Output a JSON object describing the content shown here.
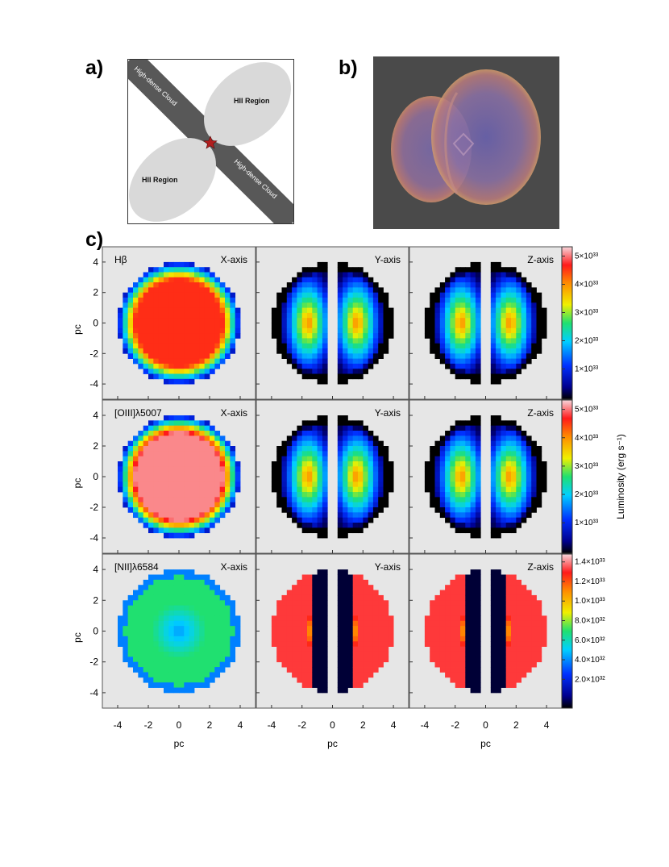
{
  "panel_labels": {
    "a": "a)",
    "b": "b)",
    "c": "c)"
  },
  "schematic": {
    "cloud_label_upper": "High-dense Cloud",
    "cloud_label_lower": "High-dense Cloud",
    "hii_upper": "HII Region",
    "hii_lower": "HII Region",
    "colors": {
      "frame_bg": "#ffffff",
      "cloud": "#585858",
      "hii": "#d9d9d9",
      "star": "#b01e1e"
    }
  },
  "render": {
    "colors": {
      "bg": "#4a4a4a",
      "shell": "#b07878",
      "inner": "#7c6aa6"
    }
  },
  "maps": {
    "axis_label": "pc",
    "ticks": [
      "-4",
      "-2",
      "0",
      "2",
      "4"
    ],
    "ylim": [
      -5,
      5
    ],
    "xlim": [
      -5,
      5
    ],
    "rows": [
      {
        "line": "Hβ",
        "cbar_ticks": [
          "5×10³³",
          "4×10³³",
          "3×10³³",
          "2×10³³",
          "1×10³³"
        ]
      },
      {
        "line": "[OIII]λ5007",
        "cbar_ticks": [
          "5×10³³",
          "4×10³³",
          "3×10³³",
          "2×10³³",
          "1×10³³"
        ]
      },
      {
        "line": "[NII]λ6584",
        "cbar_ticks": [
          "1.4×10³³",
          "1.2×10³³",
          "1.0×10³³",
          "8.0×10³²",
          "6.0×10³²",
          "4.0×10³²",
          "2.0×10³²"
        ]
      }
    ],
    "columns": [
      "X-axis",
      "Y-axis",
      "Z-axis"
    ],
    "colorbar_label": "Luminosity (erg s⁻¹)"
  }
}
